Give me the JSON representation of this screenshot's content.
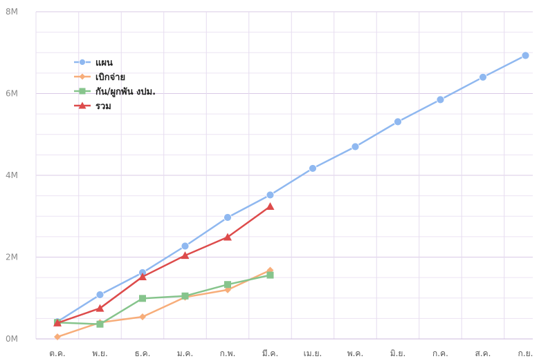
{
  "chart_data": {
    "type": "line",
    "categories": [
      "ต.ค.",
      "พ.ย.",
      "ธ.ค.",
      "ม.ค.",
      "ก.พ.",
      "มี.ค.",
      "เม.ย.",
      "พ.ค.",
      "มิ.ย.",
      "ก.ค.",
      "ส.ค.",
      "ก.ย."
    ],
    "y_ticks": [
      "0M",
      "2M",
      "4M",
      "6M",
      "8M"
    ],
    "ylim": [
      0,
      8
    ],
    "y_unit": "M",
    "grid": true,
    "legend_position": "top-left",
    "series": [
      {
        "name": "แผน",
        "marker": "circle",
        "color": "#8fb8f0",
        "values": [
          0.42,
          1.08,
          1.62,
          2.27,
          2.97,
          3.52,
          4.17,
          4.7,
          5.31,
          5.85,
          6.4,
          6.93
        ]
      },
      {
        "name": "เบิกจ่าย",
        "marker": "diamond",
        "color": "#f7ad7a",
        "values": [
          0.05,
          0.4,
          0.54,
          1.02,
          1.2,
          1.68,
          null,
          null,
          null,
          null,
          null,
          null
        ]
      },
      {
        "name": "กัน/ผูกพัน งปม.",
        "marker": "square",
        "color": "#86c48c",
        "values": [
          0.4,
          0.36,
          0.99,
          1.05,
          1.33,
          1.56,
          null,
          null,
          null,
          null,
          null,
          null
        ]
      },
      {
        "name": "รวม",
        "marker": "triangle",
        "color": "#dd4b4b",
        "values": [
          0.39,
          0.75,
          1.52,
          2.04,
          2.49,
          3.24,
          null,
          null,
          null,
          null,
          null,
          null
        ]
      }
    ]
  }
}
